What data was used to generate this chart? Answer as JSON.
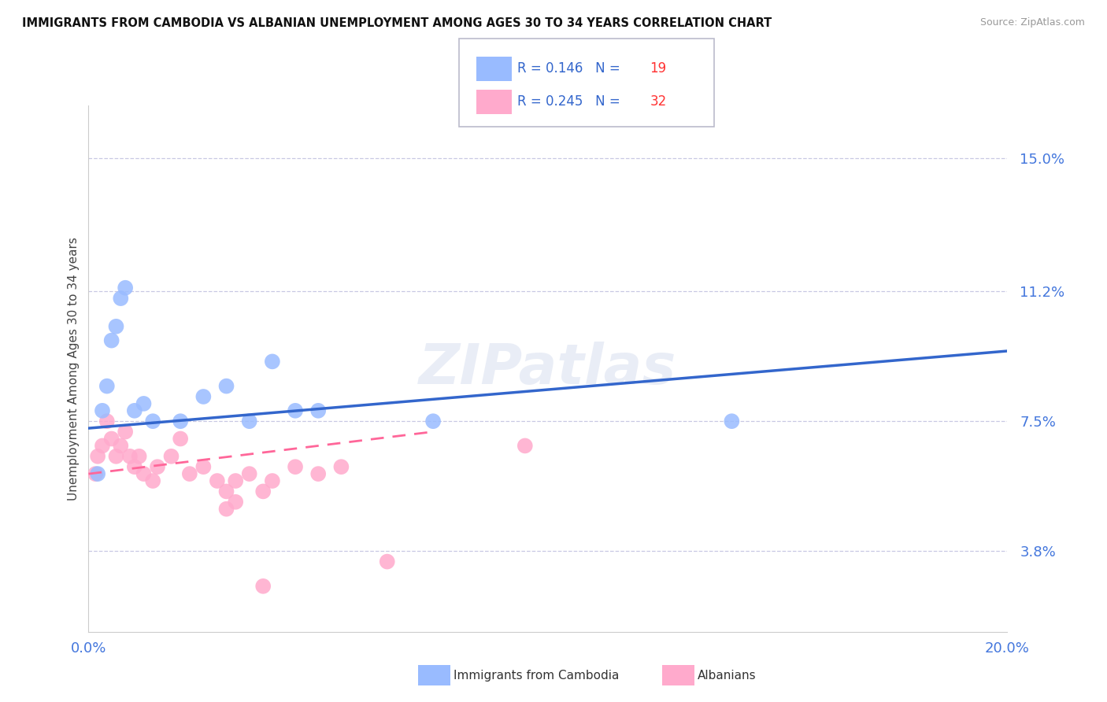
{
  "title": "IMMIGRANTS FROM CAMBODIA VS ALBANIAN UNEMPLOYMENT AMONG AGES 30 TO 34 YEARS CORRELATION CHART",
  "source": "Source: ZipAtlas.com",
  "ylabel_label": "Unemployment Among Ages 30 to 34 years",
  "xlim": [
    0.0,
    20.0
  ],
  "ylim": [
    1.5,
    16.5
  ],
  "ylabel_ticks": [
    3.8,
    7.5,
    11.2,
    15.0
  ],
  "legend_blue_r": "R = 0.146",
  "legend_blue_n": "N = 19",
  "legend_pink_r": "R = 0.245",
  "legend_pink_n": "N = 32",
  "color_blue": "#99BBFF",
  "color_pink": "#FFAACC",
  "color_blue_line": "#3366CC",
  "color_pink_line": "#FF6699",
  "watermark": "ZIPatlas",
  "blue_points_x": [
    0.2,
    0.3,
    0.4,
    0.5,
    0.6,
    0.8,
    1.0,
    1.2,
    1.4,
    2.0,
    2.5,
    3.0,
    3.5,
    4.0,
    4.5,
    5.0,
    7.5,
    14.0,
    0.7
  ],
  "blue_points_y": [
    6.0,
    7.8,
    8.5,
    9.8,
    10.2,
    11.3,
    7.8,
    8.0,
    7.5,
    7.5,
    8.2,
    8.5,
    7.5,
    9.2,
    7.8,
    7.8,
    7.5,
    7.5,
    11.0
  ],
  "pink_points_x": [
    0.15,
    0.2,
    0.3,
    0.4,
    0.5,
    0.6,
    0.7,
    0.8,
    0.9,
    1.0,
    1.1,
    1.2,
    1.4,
    1.5,
    1.8,
    2.0,
    2.2,
    2.5,
    2.8,
    3.0,
    3.2,
    3.5,
    3.8,
    4.0,
    4.5,
    5.0,
    5.5,
    6.5,
    3.0,
    3.2,
    3.8,
    9.5
  ],
  "pink_points_y": [
    6.0,
    6.5,
    6.8,
    7.5,
    7.0,
    6.5,
    6.8,
    7.2,
    6.5,
    6.2,
    6.5,
    6.0,
    5.8,
    6.2,
    6.5,
    7.0,
    6.0,
    6.2,
    5.8,
    5.5,
    5.8,
    6.0,
    5.5,
    5.8,
    6.2,
    6.0,
    6.2,
    3.5,
    5.0,
    5.2,
    2.8,
    6.8
  ],
  "blue_trendline_x": [
    0.0,
    20.0
  ],
  "blue_trendline_y": [
    7.3,
    9.5
  ],
  "pink_trendline_x": [
    0.0,
    7.5
  ],
  "pink_trendline_y": [
    6.0,
    7.2
  ],
  "dashed_hlines": [
    3.8,
    7.5,
    11.2,
    15.0
  ],
  "figsize": [
    14.06,
    8.92
  ],
  "dpi": 100
}
